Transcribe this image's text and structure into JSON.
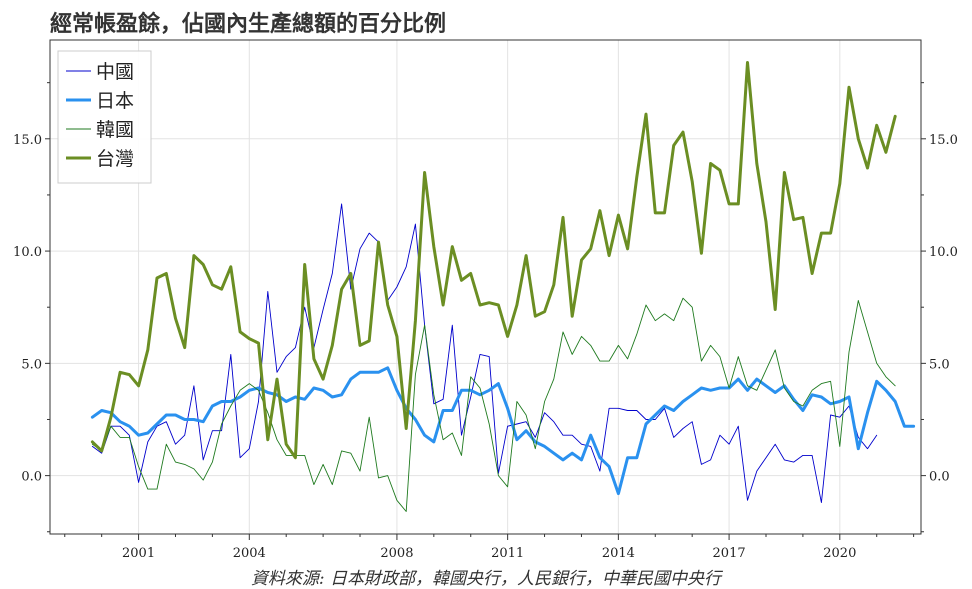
{
  "chart_data": {
    "type": "line",
    "title": "經常帳盈餘，佔國內生產總額的百分比例",
    "source": "資料來源: 日本財政部，韓國央行，人民銀行，中華民國中央行",
    "x_start": 1999.75,
    "x_step": 0.25,
    "xlim": [
      1998.6,
      2022.2
    ],
    "ylim": [
      -2.6,
      19.4
    ],
    "x_ticks": [
      2001,
      2004,
      2008,
      2011,
      2014,
      2017,
      2020
    ],
    "x_tick_labels": [
      "2001",
      "2004",
      "2008",
      "2011",
      "2014",
      "2017",
      "2020"
    ],
    "y_ticks": [
      0,
      5,
      10,
      15
    ],
    "y_tick_labels": [
      "0.0",
      "5.0",
      "10.0",
      "15.0"
    ],
    "grid": true,
    "legend_position": "top-left",
    "series": [
      {
        "name": "中國",
        "color": "#0000cc",
        "width": 0.9,
        "values": [
          1.3,
          1.0,
          2.2,
          2.2,
          1.8,
          -0.3,
          1.5,
          2.2,
          2.4,
          1.4,
          1.8,
          4.0,
          0.7,
          2.0,
          2.0,
          5.4,
          0.8,
          1.2,
          3.3,
          8.2,
          4.6,
          5.3,
          5.7,
          7.5,
          5.7,
          7.4,
          9.0,
          12.1,
          8.3,
          10.1,
          10.8,
          10.4,
          7.8,
          8.4,
          9.3,
          11.2,
          6.7,
          3.2,
          3.4,
          6.7,
          1.8,
          3.5,
          5.4,
          5.3,
          0.1,
          2.2,
          2.3,
          2.4,
          1.7,
          2.8,
          2.4,
          1.8,
          1.8,
          1.4,
          1.3,
          0.2,
          3.0,
          3.0,
          2.9,
          2.9,
          2.5,
          2.5,
          3.0,
          1.7,
          2.1,
          2.4,
          0.5,
          0.7,
          1.8,
          1.4,
          2.2,
          -1.1,
          0.2,
          0.8,
          1.4,
          0.7,
          0.6,
          0.9,
          0.9,
          -1.2,
          2.7,
          2.6,
          3.1,
          1.7,
          1.2,
          1.8
        ]
      },
      {
        "name": "日本",
        "color": "#2a91ef",
        "width": 3,
        "values": [
          2.6,
          2.9,
          2.8,
          2.4,
          2.2,
          1.8,
          1.9,
          2.3,
          2.7,
          2.7,
          2.5,
          2.5,
          2.4,
          3.1,
          3.3,
          3.3,
          3.5,
          3.8,
          3.9,
          3.7,
          3.6,
          3.3,
          3.5,
          3.4,
          3.9,
          3.8,
          3.5,
          3.6,
          4.3,
          4.6,
          4.6,
          4.6,
          4.8,
          3.8,
          3.0,
          2.5,
          1.8,
          1.5,
          2.9,
          2.9,
          3.8,
          3.8,
          3.6,
          3.8,
          4.1,
          3.0,
          1.6,
          2.0,
          1.5,
          1.3,
          1.0,
          0.7,
          1.0,
          0.7,
          1.8,
          0.8,
          0.4,
          -0.8,
          0.8,
          0.8,
          2.3,
          2.7,
          3.1,
          2.9,
          3.3,
          3.6,
          3.9,
          3.8,
          3.9,
          3.9,
          4.3,
          3.8,
          4.3,
          4.0,
          3.7,
          4.0,
          3.4,
          2.9,
          3.6,
          3.5,
          3.2,
          3.3,
          3.5,
          1.2,
          2.8,
          4.2,
          3.8,
          3.3,
          2.2,
          2.2
        ]
      },
      {
        "name": "韓國",
        "color": "#1f7a1f",
        "width": 0.9,
        "values": [
          1.4,
          1.1,
          2.2,
          1.7,
          1.7,
          0.4,
          -0.6,
          -0.6,
          1.4,
          0.6,
          0.5,
          0.3,
          -0.2,
          0.6,
          2.3,
          3.1,
          3.8,
          4.1,
          3.8,
          2.8,
          1.6,
          0.9,
          0.9,
          0.9,
          -0.4,
          0.5,
          -0.4,
          1.1,
          1.0,
          0.2,
          2.6,
          -0.1,
          0.0,
          -1.1,
          -1.6,
          4.5,
          6.7,
          3.6,
          1.6,
          1.9,
          0.9,
          4.4,
          3.9,
          2.3,
          0.0,
          -0.5,
          3.3,
          2.7,
          1.2,
          3.3,
          4.3,
          6.4,
          5.4,
          6.2,
          5.8,
          5.1,
          5.1,
          5.8,
          5.2,
          6.3,
          7.6,
          6.9,
          7.2,
          6.9,
          7.9,
          7.5,
          5.1,
          5.8,
          5.3,
          3.9,
          5.3,
          4.0,
          3.8,
          4.7,
          5.6,
          3.9,
          3.3,
          3.1,
          3.8,
          4.1,
          4.2,
          1.3,
          5.5,
          7.8,
          6.4,
          5.0,
          4.4,
          4.0
        ]
      },
      {
        "name": "台灣",
        "color": "#6b8e23",
        "width": 3,
        "values": [
          1.5,
          1.1,
          2.6,
          4.6,
          4.5,
          4.0,
          5.6,
          8.8,
          9.0,
          7.0,
          5.7,
          9.8,
          9.4,
          8.5,
          8.3,
          9.3,
          6.4,
          6.1,
          5.9,
          1.6,
          4.3,
          1.4,
          0.8,
          9.4,
          5.2,
          4.3,
          5.8,
          8.3,
          9.0,
          5.8,
          6.0,
          10.4,
          7.6,
          6.2,
          2.1,
          6.9,
          13.5,
          10.2,
          7.6,
          10.2,
          8.7,
          9.0,
          7.6,
          7.7,
          7.6,
          6.2,
          7.6,
          9.8,
          7.1,
          7.3,
          8.5,
          11.5,
          7.1,
          9.6,
          10.1,
          11.8,
          9.8,
          11.6,
          10.1,
          13.3,
          16.1,
          11.7,
          11.7,
          14.7,
          15.3,
          13.1,
          9.9,
          13.9,
          13.6,
          12.1,
          12.1,
          18.4,
          13.9,
          11.3,
          7.4,
          13.5,
          11.4,
          11.5,
          9.0,
          10.8,
          10.8,
          13.0,
          17.3,
          15.0,
          13.7,
          15.6,
          14.4,
          16.0
        ]
      }
    ]
  }
}
